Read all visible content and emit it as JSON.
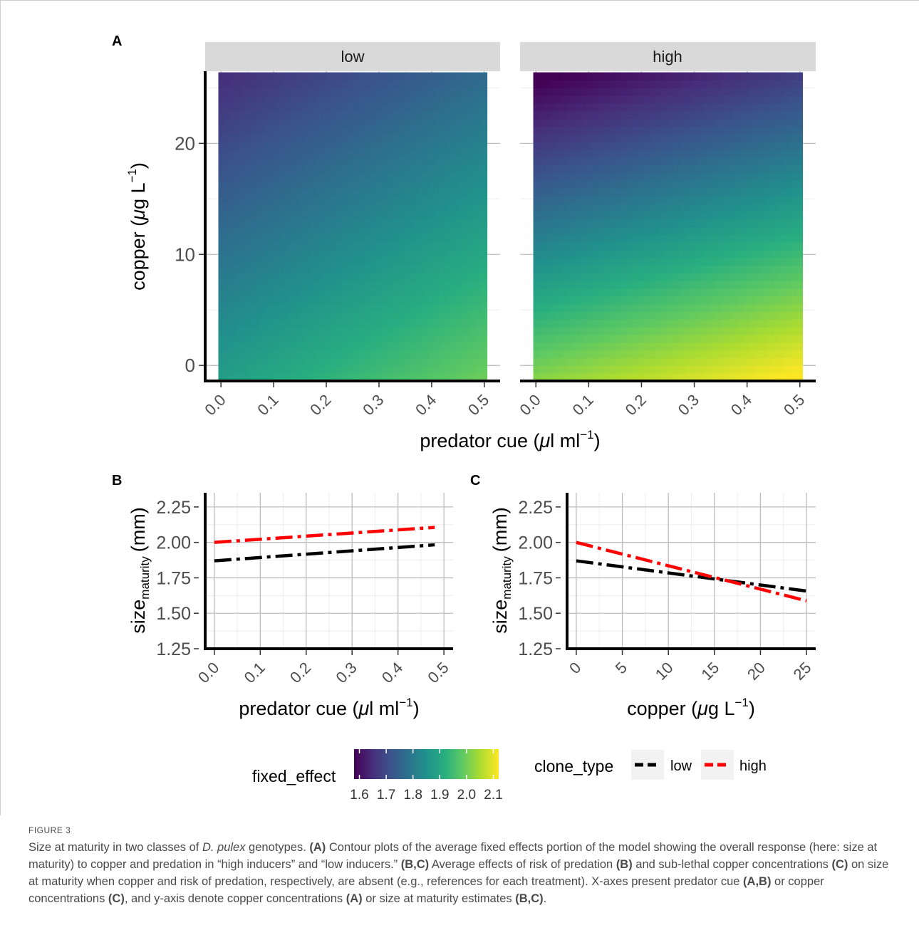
{
  "chart_data": [
    {
      "panel": "A",
      "type": "heatmap",
      "facets": [
        "low",
        "high"
      ],
      "x_axis": {
        "label_text": "predator cue (",
        "label_mu": "μ",
        "label_unit": "l ml",
        "label_exp": "−1",
        "label_close": ")",
        "range": [
          -0.03,
          0.53
        ],
        "ticks": [
          0.0,
          0.1,
          0.2,
          0.3,
          0.4,
          0.5
        ],
        "tick_labels": [
          "0.0",
          "0.1",
          "0.2",
          "0.3",
          "0.4",
          "0.5"
        ]
      },
      "y_axis": {
        "label_text": "copper (",
        "label_mu": "μ",
        "label_unit": "g L",
        "label_exp": "−1",
        "label_close": ")",
        "range": [
          -1.4,
          26.5
        ],
        "ticks": [
          0,
          10,
          20
        ],
        "tick_labels": [
          "0",
          "10",
          "20"
        ]
      },
      "fill_model": {
        "low": {
          "intercept": 1.87,
          "cue_coef": 0.235,
          "copper_coef": -0.0085
        },
        "high": {
          "intercept": 2.0,
          "cue_coef": 0.22,
          "copper_coef": -0.0165
        }
      },
      "colorbar": {
        "title": "fixed_effect",
        "range": [
          1.58,
          2.12
        ],
        "ticks": [
          1.6,
          1.7,
          1.8,
          1.9,
          2.0,
          2.1
        ],
        "tick_labels": [
          "1.6",
          "1.7",
          "1.8",
          "1.9",
          "2.0",
          "2.1"
        ],
        "colormap": "viridis"
      }
    },
    {
      "panel": "B",
      "type": "line",
      "x_axis": {
        "label_text": "predator cue (",
        "label_mu": "μ",
        "label_unit": "l ml",
        "label_exp": "−1",
        "label_close": ")",
        "range": [
          -0.02,
          0.52
        ],
        "ticks": [
          0.0,
          0.1,
          0.2,
          0.3,
          0.4,
          0.5
        ],
        "tick_labels": [
          "0.0",
          "0.1",
          "0.2",
          "0.3",
          "0.4",
          "0.5"
        ]
      },
      "y_axis": {
        "label_main": "size",
        "label_sub": "maturity",
        "label_unit": "(mm)",
        "range": [
          1.25,
          2.35
        ],
        "ticks": [
          1.25,
          1.5,
          1.75,
          2.0,
          2.25
        ],
        "tick_labels": [
          "1.25",
          "1.50",
          "1.75",
          "2.00",
          "2.25"
        ]
      },
      "series": [
        {
          "name": "low",
          "color": "#000000",
          "x": [
            0.0,
            0.48
          ],
          "y": [
            1.87,
            1.983
          ]
        },
        {
          "name": "high",
          "color": "#ff0000",
          "x": [
            0.0,
            0.48
          ],
          "y": [
            2.0,
            2.106
          ]
        }
      ]
    },
    {
      "panel": "C",
      "type": "line",
      "x_axis": {
        "label_text": "copper (",
        "label_mu": "μ",
        "label_unit": "g L",
        "label_exp": "−1",
        "label_close": ")",
        "range": [
          -1,
          26
        ],
        "ticks": [
          0,
          5,
          10,
          15,
          20,
          25
        ],
        "tick_labels": [
          "0",
          "5",
          "10",
          "15",
          "20",
          "25"
        ]
      },
      "y_axis": {
        "label_main": "size",
        "label_sub": "maturity",
        "label_unit": "(mm)",
        "range": [
          1.25,
          2.35
        ],
        "ticks": [
          1.25,
          1.5,
          1.75,
          2.0,
          2.25
        ],
        "tick_labels": [
          "1.25",
          "1.50",
          "1.75",
          "2.00",
          "2.25"
        ]
      },
      "series": [
        {
          "name": "low",
          "color": "#000000",
          "x": [
            0,
            25
          ],
          "y": [
            1.87,
            1.657
          ]
        },
        {
          "name": "high",
          "color": "#ff0000",
          "x": [
            0,
            25
          ],
          "y": [
            2.0,
            1.588
          ]
        }
      ]
    }
  ],
  "panel_labels": {
    "a": "A",
    "b": "B",
    "c": "C"
  },
  "legend": {
    "title": "clone_type",
    "items": [
      {
        "name": "low",
        "color": "#000000"
      },
      {
        "name": "high",
        "color": "#ff0000"
      }
    ]
  },
  "caption": {
    "figure_label": "FIGURE 3",
    "t1": "Size at maturity in two classes of ",
    "t1_it": "D. pulex",
    "t2": " genotypes. ",
    "b1": "(A)",
    "t3": " Contour plots of the average fixed effects portion of the model showing the overall response (here: size at maturity) to copper and predation in “high inducers” and “low inducers.” ",
    "b2": "(B,C)",
    "t4": " Average effects of risk of predation ",
    "b3": "(B)",
    "t5": " and sub-lethal copper concentrations ",
    "b4": "(C)",
    "t6": " on size at maturity when copper and risk of predation, respectively, are absent (e.g., references for each treatment). X-axes present predator cue ",
    "b5": "(A,B)",
    "t7": " or copper concentrations ",
    "b6": "(C)",
    "t8": ", and y-axis denote copper concentrations ",
    "b7": "(A)",
    "t9": " or size at maturity estimates ",
    "b8": "(B,C)",
    "t10": "."
  }
}
